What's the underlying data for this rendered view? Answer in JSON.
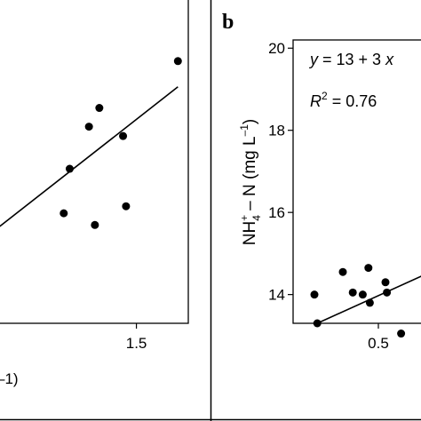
{
  "chart_data": [
    {
      "type": "scatter",
      "panel": "",
      "x_ticks": [
        "1.5"
      ],
      "xlim": [
        0.55,
        1.85
      ],
      "ylim": [
        -0.4,
        1.0
      ],
      "x_label_fragment": "–1)",
      "points": [
        {
          "x": 1.05,
          "y": 0.26
        },
        {
          "x": 1.18,
          "y": 0.44
        },
        {
          "x": 1.25,
          "y": 0.52
        },
        {
          "x": 1.01,
          "y": 0.07
        },
        {
          "x": 1.22,
          "y": 0.02
        },
        {
          "x": 1.43,
          "y": 0.1
        },
        {
          "x": 1.41,
          "y": 0.4
        },
        {
          "x": 1.78,
          "y": 0.72
        }
      ],
      "fit_line": {
        "x": [
          0.55,
          1.78
        ],
        "y": [
          0.0,
          0.61
        ]
      }
    },
    {
      "type": "scatter",
      "panel": "b",
      "ylabel": {
        "base": "NH",
        "sup": "+",
        "sub": "4",
        "rest": " – N (mg L",
        "sup2": "–1",
        "close": ")"
      },
      "equation": {
        "lhs": "y",
        "mid": " = 13 + 3 ",
        "var": "x"
      },
      "r2": {
        "symbol": "R",
        "sup": "2",
        "value": " = 0.76"
      },
      "y_ticks": [
        "20",
        "18",
        "16",
        "14"
      ],
      "y_tick_values": [
        20,
        18,
        16,
        14
      ],
      "x_ticks": [
        "0.5"
      ],
      "x_tick_values": [
        0.5
      ],
      "xlim": [
        0.2,
        0.7
      ],
      "ylim": [
        13.3,
        20.2
      ],
      "points": [
        {
          "x": 0.275,
          "y": 14.0
        },
        {
          "x": 0.285,
          "y": 13.3
        },
        {
          "x": 0.375,
          "y": 14.55
        },
        {
          "x": 0.41,
          "y": 14.05
        },
        {
          "x": 0.445,
          "y": 14.0
        },
        {
          "x": 0.465,
          "y": 14.65
        },
        {
          "x": 0.47,
          "y": 13.8
        },
        {
          "x": 0.525,
          "y": 14.3
        },
        {
          "x": 0.53,
          "y": 14.05
        },
        {
          "x": 0.58,
          "y": 13.05
        }
      ],
      "fit_line": {
        "x": [
          0.285,
          0.7
        ],
        "y": [
          13.3,
          14.6
        ]
      }
    }
  ]
}
